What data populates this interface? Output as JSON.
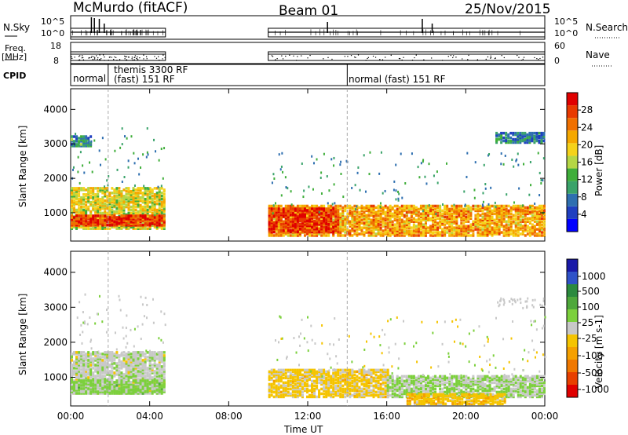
{
  "header": {
    "station": "McMurdo (fitACF)",
    "beam": "Beam 01",
    "date": "25/Nov/2015"
  },
  "strip": {
    "nsky_label": "N.Sky",
    "nsky_ticks": [
      "10^5",
      "10^0"
    ],
    "nsearch_label": "N.Search",
    "nsearch_ticks": [
      "10^5",
      "10^0"
    ],
    "freq_label": "Freq.",
    "freq_unit": "[MHz]",
    "freq_ticks": [
      "18",
      "8"
    ],
    "nave_label": "Nave",
    "nave_ticks": [
      "60",
      "0"
    ],
    "cpid_label": "CPID",
    "cpid_segments": [
      {
        "text": "normal",
        "start_h": 0.0
      },
      {
        "text": "themis 3300 RF",
        "start_h": 1.9
      },
      {
        "text": "(fast) 151 RF",
        "start_h": 1.9
      },
      {
        "text": "normal (fast) 151 RF",
        "start_h": 14.0
      }
    ]
  },
  "panels": {
    "ylabel": "Slant Range [km]",
    "yticks": [
      "4000",
      "3000",
      "2000",
      "1000"
    ],
    "xticks": [
      "00:00",
      "04:00",
      "08:00",
      "12:00",
      "16:00",
      "20:00",
      "00:00"
    ],
    "xlabel": "Time UT"
  },
  "power_bar": {
    "label": "Power [dB]",
    "ticks": [
      "28",
      "24",
      "20",
      "16",
      "12",
      "8",
      "4"
    ],
    "colors": [
      "#0000ff",
      "#1f3fc0",
      "#2e6fb0",
      "#3aa36a",
      "#3fae3a",
      "#b5d645",
      "#f5d21a",
      "#f5a800",
      "#f07000",
      "#e83a00",
      "#e00000"
    ]
  },
  "velocity_bar": {
    "label": "Velocity [m s-1]",
    "ticks": [
      "1000",
      "500",
      "100",
      "25",
      "-25",
      "-100",
      "-500",
      "-1000"
    ],
    "colors": [
      "#1a1aa8",
      "#2f52c8",
      "#2b8a3e",
      "#4ea83b",
      "#7cd03c",
      "#c8c8c8",
      "#f5c400",
      "#f5a000",
      "#f07800",
      "#e84000",
      "#e00000"
    ]
  },
  "chart_data": [
    {
      "type": "heatmap",
      "title": "Power",
      "xlabel": "Time UT",
      "ylabel": "Slant Range [km]",
      "x_range_hours": [
        0,
        24
      ],
      "ylim": [
        180,
        4600
      ],
      "colorbar_label": "Power [dB]",
      "colorbar_range": [
        0,
        32
      ],
      "regions": [
        {
          "x_h": [
            0.0,
            4.8
          ],
          "y_km": [
            500,
            1700
          ],
          "value_db": 18
        },
        {
          "x_h": [
            0.0,
            4.8
          ],
          "y_km": [
            600,
            900
          ],
          "value_db": 28
        },
        {
          "x_h": [
            0.0,
            1.0
          ],
          "y_km": [
            2900,
            3200
          ],
          "value_db": 10
        },
        {
          "x_h": [
            10.0,
            24.0
          ],
          "y_km": [
            300,
            1200
          ],
          "value_db": 22
        },
        {
          "x_h": [
            10.0,
            13.5
          ],
          "y_km": [
            400,
            1100
          ],
          "value_db": 28
        },
        {
          "x_h": [
            21.5,
            24.0
          ],
          "y_km": [
            3000,
            3300
          ],
          "value_db": 8
        }
      ]
    },
    {
      "type": "heatmap",
      "title": "Velocity",
      "xlabel": "Time UT",
      "ylabel": "Slant Range [km]",
      "x_range_hours": [
        0,
        24
      ],
      "ylim": [
        180,
        4600
      ],
      "colorbar_label": "Velocity [m s-1]",
      "colorbar_range": [
        -1000,
        1000
      ],
      "regions": [
        {
          "x_h": [
            0.0,
            4.8
          ],
          "y_km": [
            500,
            1700
          ],
          "value_ms": 25
        },
        {
          "x_h": [
            0.0,
            4.8
          ],
          "y_km": [
            500,
            900
          ],
          "value_ms": 150
        },
        {
          "x_h": [
            10.0,
            16.0
          ],
          "y_km": [
            400,
            1200
          ],
          "value_ms": -150
        },
        {
          "x_h": [
            16.0,
            24.0
          ],
          "y_km": [
            400,
            1000
          ],
          "value_ms": 100
        },
        {
          "x_h": [
            17.0,
            22.0
          ],
          "y_km": [
            200,
            500
          ],
          "value_ms": -200
        }
      ]
    }
  ]
}
